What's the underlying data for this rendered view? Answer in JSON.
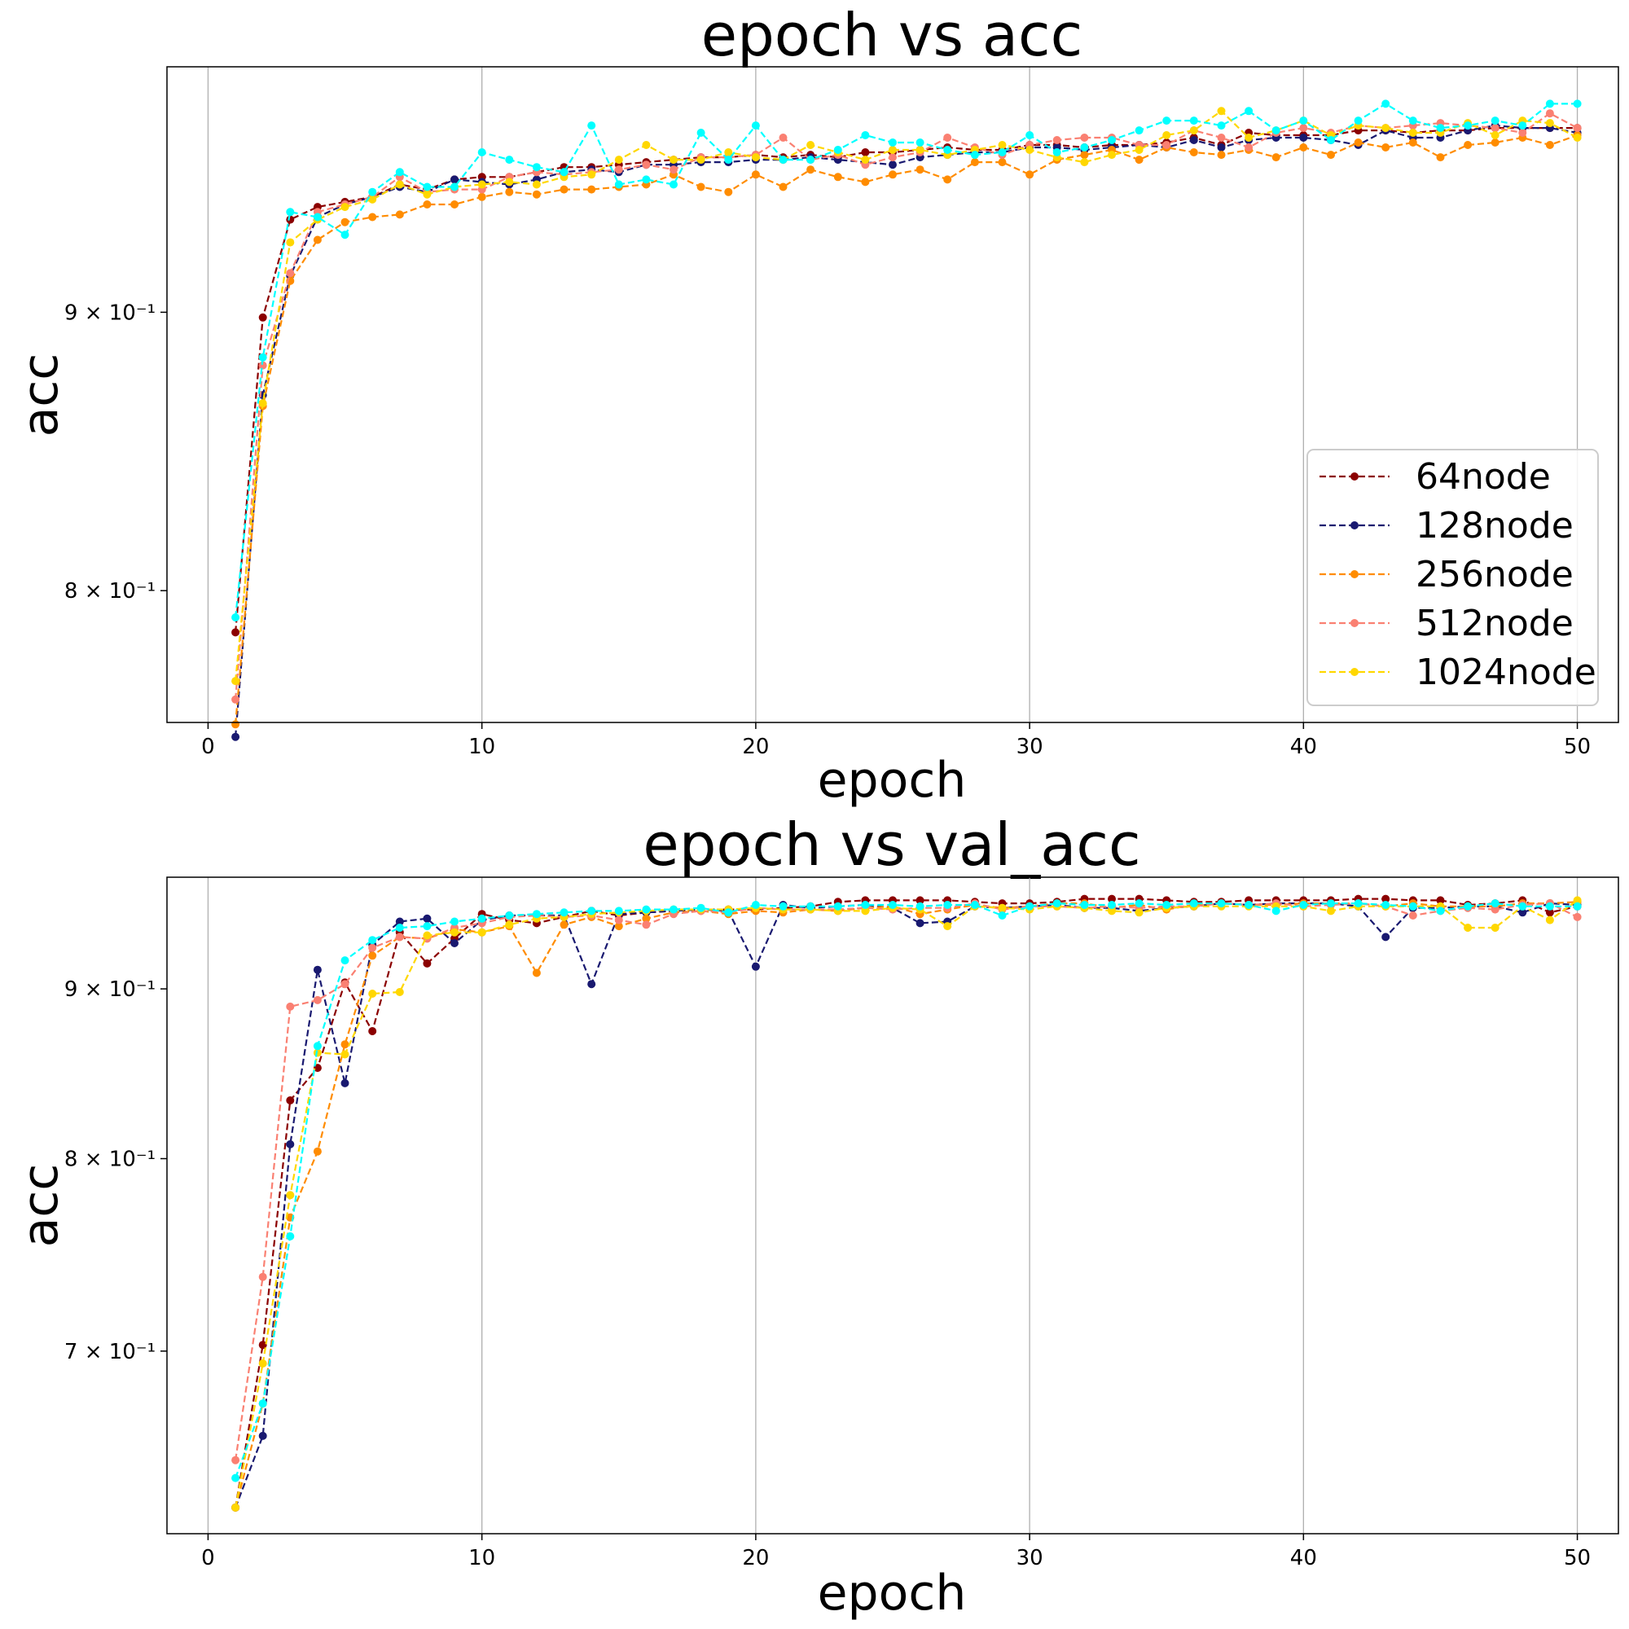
{
  "chart_data": [
    {
      "type": "line",
      "title": "epoch vs acc",
      "xlabel": "epoch",
      "ylabel": "acc",
      "yscale": "log",
      "xlim": [
        -1.5,
        51.5
      ],
      "ylim": [
        0.7566,
        0.9985
      ],
      "xticks": [
        0,
        10,
        20,
        30,
        40,
        50
      ],
      "yticks": [
        {
          "value": 0.9,
          "label": "9 × 10⁻¹"
        },
        {
          "value": 0.8,
          "label": "8 × 10⁻¹"
        }
      ],
      "grid": "x-axis only",
      "legend": {
        "position": "right"
      },
      "x": [
        1,
        2,
        3,
        4,
        5,
        6,
        7,
        8,
        9,
        10,
        11,
        12,
        13,
        14,
        15,
        16,
        17,
        18,
        19,
        20,
        21,
        22,
        23,
        24,
        25,
        26,
        27,
        28,
        29,
        30,
        31,
        32,
        33,
        34,
        35,
        36,
        37,
        38,
        39,
        40,
        41,
        42,
        43,
        44,
        45,
        46,
        47,
        48,
        49,
        50
      ],
      "series": [
        {
          "name": "64node",
          "color": "#8b0000",
          "values": [
            0.786,
            0.898,
            0.936,
            0.941,
            0.943,
            0.945,
            0.95,
            0.948,
            0.952,
            0.953,
            0.953,
            0.955,
            0.957,
            0.957,
            0.958,
            0.959,
            0.96,
            0.961,
            0.961,
            0.962,
            0.961,
            0.962,
            0.961,
            0.963,
            0.963,
            0.964,
            0.965,
            0.964,
            0.964,
            0.966,
            0.966,
            0.965,
            0.966,
            0.966,
            0.967,
            0.969,
            0.966,
            0.971,
            0.97,
            0.97,
            0.97,
            0.972,
            0.972,
            0.971,
            0.972,
            0.972,
            0.973,
            0.973,
            0.973,
            0.973
          ]
        },
        {
          "name": "128node",
          "color": "#191970",
          "values": [
            0.752,
            0.869,
            0.914,
            0.937,
            0.942,
            0.945,
            0.949,
            0.947,
            0.952,
            0.951,
            0.95,
            0.952,
            0.955,
            0.956,
            0.955,
            0.958,
            0.958,
            0.959,
            0.959,
            0.96,
            0.96,
            0.961,
            0.96,
            0.959,
            0.958,
            0.961,
            0.962,
            0.963,
            0.963,
            0.965,
            0.965,
            0.964,
            0.965,
            0.966,
            0.965,
            0.968,
            0.965,
            0.968,
            0.969,
            0.969,
            0.968,
            0.966,
            0.972,
            0.969,
            0.969,
            0.972,
            0.974,
            0.973,
            0.973,
            0.971
          ]
        },
        {
          "name": "256node",
          "color": "#ff8c00",
          "values": [
            0.756,
            0.865,
            0.912,
            0.928,
            0.935,
            0.937,
            0.938,
            0.942,
            0.942,
            0.945,
            0.947,
            0.946,
            0.948,
            0.948,
            0.949,
            0.95,
            0.954,
            0.949,
            0.947,
            0.954,
            0.949,
            0.956,
            0.953,
            0.951,
            0.954,
            0.956,
            0.952,
            0.959,
            0.959,
            0.954,
            0.96,
            0.962,
            0.964,
            0.96,
            0.965,
            0.963,
            0.962,
            0.964,
            0.961,
            0.965,
            0.962,
            0.967,
            0.965,
            0.967,
            0.961,
            0.966,
            0.967,
            0.969,
            0.966,
            0.97
          ]
        },
        {
          "name": "512node",
          "color": "#fa8072",
          "values": [
            0.764,
            0.88,
            0.915,
            0.939,
            0.942,
            0.945,
            0.953,
            0.947,
            0.948,
            0.948,
            0.953,
            0.955,
            0.954,
            0.955,
            0.956,
            0.958,
            0.956,
            0.961,
            0.961,
            0.962,
            0.969,
            0.96,
            0.962,
            0.958,
            0.961,
            0.963,
            0.969,
            0.965,
            0.962,
            0.966,
            0.968,
            0.969,
            0.969,
            0.966,
            0.966,
            0.972,
            0.969,
            0.965,
            0.971,
            0.973,
            0.971,
            0.974,
            0.973,
            0.974,
            0.975,
            0.974,
            0.973,
            0.971,
            0.979,
            0.973
          ]
        },
        {
          "name": "1024node",
          "color": "#ffd700",
          "values": [
            0.77,
            0.866,
            0.927,
            0.936,
            0.941,
            0.944,
            0.95,
            0.946,
            0.949,
            0.95,
            0.951,
            0.95,
            0.953,
            0.954,
            0.96,
            0.966,
            0.96,
            0.96,
            0.963,
            0.961,
            0.96,
            0.966,
            0.963,
            0.96,
            0.964,
            0.964,
            0.962,
            0.964,
            0.966,
            0.964,
            0.961,
            0.959,
            0.962,
            0.964,
            0.97,
            0.972,
            0.98,
            0.969,
            0.972,
            0.976,
            0.97,
            0.974,
            0.973,
            0.971,
            0.971,
            0.975,
            0.97,
            0.976,
            0.975,
            0.969
          ]
        },
        {
          "color": "#00ffff",
          "values": [
            0.791,
            0.883,
            0.939,
            0.937,
            0.93,
            0.947,
            0.955,
            0.949,
            0.949,
            0.963,
            0.96,
            0.957,
            0.955,
            0.974,
            0.95,
            0.952,
            0.95,
            0.971,
            0.96,
            0.974,
            0.96,
            0.96,
            0.964,
            0.97,
            0.967,
            0.967,
            0.964,
            0.962,
            0.963,
            0.97,
            0.963,
            0.965,
            0.968,
            0.972,
            0.976,
            0.976,
            0.974,
            0.98,
            0.972,
            0.976,
            0.968,
            0.976,
            0.983,
            0.976,
            0.973,
            0.974,
            0.976,
            0.974,
            0.983,
            0.983
          ]
        }
      ]
    },
    {
      "type": "line",
      "title": "epoch vs val_acc",
      "xlabel": "epoch",
      "ylabel": "acc",
      "yscale": "log",
      "xlim": [
        -1.5,
        51.5
      ],
      "ylim": [
        0.6167,
        0.9725
      ],
      "xticks": [
        0,
        10,
        20,
        30,
        40,
        50
      ],
      "yticks": [
        {
          "value": 0.9,
          "label": "9 × 10⁻¹"
        },
        {
          "value": 0.8,
          "label": "8 × 10⁻¹"
        },
        {
          "value": 0.7,
          "label": "7 × 10⁻¹"
        }
      ],
      "grid": "x-axis only",
      "x": [
        1,
        2,
        3,
        4,
        5,
        6,
        7,
        8,
        9,
        10,
        11,
        12,
        13,
        14,
        15,
        16,
        17,
        18,
        19,
        20,
        21,
        22,
        23,
        24,
        25,
        26,
        27,
        28,
        29,
        30,
        31,
        32,
        33,
        34,
        35,
        36,
        37,
        38,
        39,
        40,
        41,
        42,
        43,
        44,
        45,
        46,
        47,
        48,
        49,
        50
      ],
      "series": [
        {
          "name": "64node",
          "color": "#8b0000",
          "values": [
            0.628,
            0.703,
            0.833,
            0.852,
            0.904,
            0.874,
            0.936,
            0.916,
            0.932,
            0.948,
            0.944,
            0.942,
            0.946,
            0.95,
            0.947,
            0.949,
            0.95,
            0.951,
            0.951,
            0.951,
            0.952,
            0.953,
            0.956,
            0.957,
            0.957,
            0.957,
            0.957,
            0.956,
            0.955,
            0.955,
            0.956,
            0.958,
            0.958,
            0.958,
            0.957,
            0.956,
            0.956,
            0.957,
            0.957,
            0.957,
            0.957,
            0.958,
            0.958,
            0.957,
            0.957,
            0.954,
            0.955,
            0.957,
            0.949,
            0.953
          ]
        },
        {
          "name": "128node",
          "color": "#191970",
          "values": [
            0.628,
            0.66,
            0.808,
            0.912,
            0.843,
            0.928,
            0.943,
            0.945,
            0.929,
            0.944,
            0.947,
            0.947,
            0.947,
            0.903,
            0.948,
            0.949,
            0.95,
            0.951,
            0.95,
            0.914,
            0.954,
            0.952,
            0.953,
            0.954,
            0.952,
            0.942,
            0.943,
            0.953,
            0.952,
            0.953,
            0.954,
            0.952,
            0.952,
            0.95,
            0.952,
            0.953,
            0.955,
            0.954,
            0.955,
            0.955,
            0.955,
            0.953,
            0.933,
            0.952,
            0.952,
            0.953,
            0.953,
            0.949,
            0.955,
            0.954
          ]
        },
        {
          "name": "256node",
          "color": "#ff8c00",
          "values": [
            0.628,
            0.675,
            0.768,
            0.804,
            0.866,
            0.921,
            0.933,
            0.932,
            0.938,
            0.936,
            0.94,
            0.91,
            0.941,
            0.946,
            0.94,
            0.945,
            0.949,
            0.95,
            0.948,
            0.95,
            0.949,
            0.951,
            0.95,
            0.952,
            0.953,
            0.948,
            0.951,
            0.954,
            0.952,
            0.953,
            0.955,
            0.955,
            0.952,
            0.954,
            0.951,
            0.954,
            0.955,
            0.954,
            0.954,
            0.955,
            0.955,
            0.955,
            0.953,
            0.955,
            0.953,
            0.953,
            0.953,
            0.955,
            0.955,
            0.956
          ]
        },
        {
          "name": "512node",
          "color": "#fa8072",
          "values": [
            0.649,
            0.737,
            0.889,
            0.893,
            0.903,
            0.926,
            0.933,
            0.932,
            0.939,
            0.942,
            0.946,
            0.947,
            0.946,
            0.947,
            0.944,
            0.941,
            0.948,
            0.95,
            0.949,
            0.952,
            0.951,
            0.951,
            0.951,
            0.952,
            0.951,
            0.952,
            0.952,
            0.955,
            0.951,
            0.953,
            0.953,
            0.952,
            0.953,
            0.952,
            0.953,
            0.953,
            0.955,
            0.954,
            0.955,
            0.953,
            0.954,
            0.955,
            0.953,
            0.947,
            0.95,
            0.952,
            0.951,
            0.954,
            0.955,
            0.946
          ]
        },
        {
          "name": "1024node",
          "color": "#ffd700",
          "values": [
            0.628,
            0.694,
            0.78,
            0.861,
            0.86,
            0.897,
            0.898,
            0.934,
            0.936,
            0.936,
            0.941,
            0.945,
            0.946,
            0.948,
            0.949,
            0.95,
            0.951,
            0.951,
            0.951,
            0.952,
            0.951,
            0.951,
            0.95,
            0.95,
            0.952,
            0.951,
            0.94,
            0.953,
            0.952,
            0.951,
            0.953,
            0.952,
            0.95,
            0.949,
            0.952,
            0.953,
            0.953,
            0.953,
            0.953,
            0.953,
            0.95,
            0.953,
            0.953,
            0.953,
            0.953,
            0.939,
            0.939,
            0.953,
            0.944,
            0.957
          ]
        },
        {
          "color": "#00ffff",
          "values": [
            0.641,
            0.675,
            0.758,
            0.865,
            0.918,
            0.931,
            0.939,
            0.94,
            0.943,
            0.945,
            0.947,
            0.948,
            0.949,
            0.95,
            0.95,
            0.951,
            0.951,
            0.952,
            0.949,
            0.954,
            0.953,
            0.953,
            0.953,
            0.954,
            0.954,
            0.953,
            0.954,
            0.954,
            0.947,
            0.953,
            0.955,
            0.954,
            0.954,
            0.955,
            0.954,
            0.955,
            0.955,
            0.954,
            0.95,
            0.954,
            0.955,
            0.955,
            0.954,
            0.953,
            0.95,
            0.953,
            0.955,
            0.953,
            0.953,
            0.953
          ]
        }
      ]
    }
  ]
}
